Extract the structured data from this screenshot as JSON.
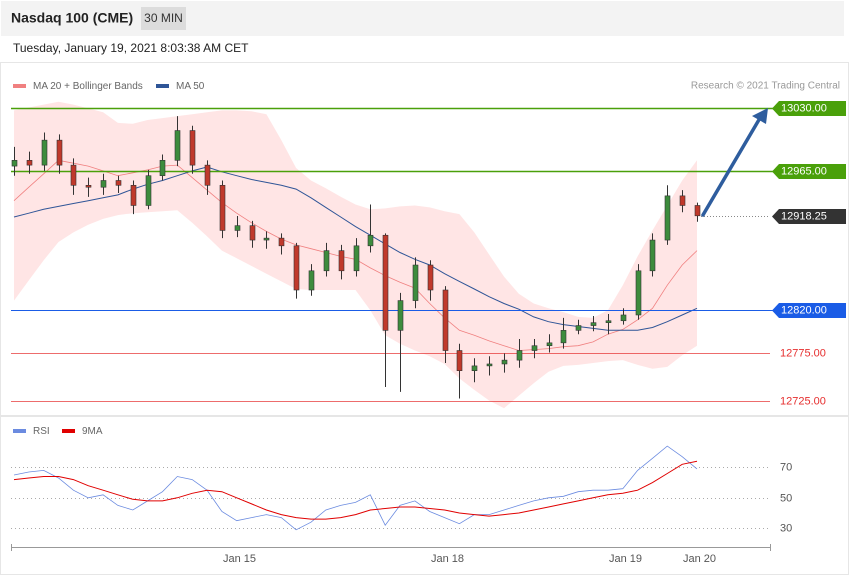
{
  "header": {
    "title": "Nasdaq 100 (CME)",
    "timeframe": "30 MIN",
    "timestamp": "Tuesday, January 19, 2021 8:03:38 AM CET"
  },
  "chart_data": [
    {
      "type": "candlestick",
      "credit": "Research © 2021 Trading Central",
      "categories": [
        null,
        null,
        null,
        null,
        null,
        null,
        null,
        null,
        null,
        null,
        null,
        null,
        null,
        null,
        null,
        "Jan 15",
        null,
        null,
        null,
        null,
        null,
        null,
        null,
        null,
        null,
        null,
        null,
        null,
        null,
        "Jan 18",
        null,
        null,
        null,
        null,
        null,
        null,
        null,
        null,
        null,
        null,
        null,
        "Jan 19",
        null,
        null,
        null,
        null,
        "Jan 20"
      ],
      "open": [
        12970,
        12976,
        12971,
        12997,
        12971,
        12950,
        12948,
        12955,
        12950,
        12929,
        12960,
        12976,
        13007,
        12971,
        12950,
        12903,
        12908,
        12893,
        12895,
        12887,
        12841,
        12861,
        12882,
        12861,
        12887,
        12898,
        12799,
        12830,
        12867,
        12841,
        12778,
        12757,
        12762,
        12764,
        12768,
        12778,
        12783,
        12786,
        12799,
        12804,
        12807,
        12809,
        12815,
        12861,
        12893,
        12939,
        12929
      ],
      "high": [
        12990,
        12985,
        13005,
        13003,
        12978,
        12958,
        12962,
        12960,
        12955,
        12966,
        12982,
        13022,
        13012,
        12976,
        12955,
        12918,
        12913,
        12902,
        12900,
        12890,
        12868,
        12890,
        12888,
        12895,
        12930,
        12900,
        12838,
        12875,
        12872,
        12845,
        12785,
        12770,
        12772,
        12775,
        12790,
        12790,
        12795,
        12812,
        12810,
        12814,
        12816,
        12822,
        12868,
        12900,
        12950,
        12945,
        12932
      ],
      "low": [
        12960,
        12962,
        12965,
        12962,
        12940,
        12938,
        12940,
        12942,
        12920,
        12925,
        12955,
        12970,
        12962,
        12940,
        12895,
        12896,
        12885,
        12884,
        12878,
        12832,
        12835,
        12855,
        12852,
        12855,
        12880,
        12740,
        12735,
        12822,
        12830,
        12765,
        12728,
        12745,
        12752,
        12755,
        12760,
        12770,
        12776,
        12780,
        12795,
        12798,
        12795,
        12805,
        12810,
        12855,
        12888,
        12922,
        12912
      ],
      "close": [
        12976,
        12971,
        12997,
        12971,
        12950,
        12948,
        12955,
        12950,
        12929,
        12960,
        12976,
        13007,
        12971,
        12950,
        12903,
        12908,
        12893,
        12895,
        12887,
        12841,
        12861,
        12882,
        12861,
        12887,
        12898,
        12799,
        12830,
        12867,
        12841,
        12778,
        12757,
        12762,
        12764,
        12768,
        12778,
        12783,
        12786,
        12799,
        12804,
        12807,
        12809,
        12815,
        12861,
        12893,
        12939,
        12929,
        12918.25
      ],
      "up_color": "#3d8c3d",
      "down_color": "#c0392b",
      "series": [
        {
          "name": "MA 20 + Bollinger Bands",
          "color": "#f08080",
          "band_color": "#ffdcdc",
          "values": [
            12934,
            12948,
            12962,
            12976,
            12973,
            12970,
            12965,
            12960,
            12963,
            12966,
            12970,
            12971,
            12958,
            12945,
            12932,
            12921,
            12911,
            12902,
            12894,
            12888,
            12884,
            12880,
            12876,
            12873,
            12864,
            12856,
            12849,
            12843,
            12827,
            12812,
            12799,
            12794,
            12788,
            12783,
            12778,
            12779,
            12780,
            12782,
            12783,
            12787,
            12795,
            12800,
            12810,
            12822,
            12846,
            12867,
            12882
          ],
          "upper": [
            13028,
            13031,
            13034,
            13037,
            13034,
            13030,
            13026,
            13015,
            13014,
            13018,
            13020,
            13022,
            13024,
            13026,
            13028,
            13028,
            13027,
            13024,
            12997,
            12968,
            12955,
            12947,
            12938,
            12930,
            12925,
            12926,
            12928,
            12929,
            12927,
            12923,
            12920,
            12901,
            12878,
            12855,
            12837,
            12827,
            12822,
            12818,
            12813,
            12812,
            12820,
            12846,
            12876,
            12903,
            12929,
            12955,
            12976
          ],
          "lower": [
            12830,
            12851,
            12872,
            12891,
            12901,
            12909,
            12915,
            12919,
            12921,
            12922,
            12923,
            12924,
            12911,
            12897,
            12882,
            12874,
            12866,
            12858,
            12850,
            12842,
            12841,
            12841,
            12841,
            12841,
            12820,
            12794,
            12785,
            12778,
            12772,
            12764,
            12749,
            12737,
            12726,
            12718,
            12731,
            12744,
            12756,
            12762,
            12763,
            12765,
            12767,
            12768,
            12763,
            12759,
            12761,
            12773,
            12783
          ]
        },
        {
          "name": "MA 50",
          "color": "#2f5597",
          "values": [
            12917,
            12921,
            12925,
            12928,
            12931,
            12934,
            12937,
            12940,
            12946,
            12951,
            12955,
            12960,
            12965,
            12969,
            12964,
            12960,
            12956,
            12953,
            12950,
            12946,
            12937,
            12927,
            12917,
            12907,
            12898,
            12889,
            12880,
            12873,
            12867,
            12858,
            12850,
            12842,
            12834,
            12827,
            12821,
            12813,
            12808,
            12805,
            12803,
            12801,
            12799,
            12799,
            12799,
            12802,
            12808,
            12815,
            12822
          ]
        }
      ],
      "levels": [
        {
          "value": 13030,
          "label": "13030.00",
          "color": "#4aa00a",
          "tag": true
        },
        {
          "value": 12965,
          "label": "12965.00",
          "color": "#4aa00a",
          "tag": true
        },
        {
          "value": 12820,
          "label": "12820.00",
          "color": "#1a5ce6",
          "tag": true
        },
        {
          "value": 12775,
          "label": "12775.00",
          "color": "#e62e2e",
          "tag": false
        },
        {
          "value": 12725,
          "label": "12725.00",
          "color": "#e62e2e",
          "tag": false
        }
      ],
      "ylim": [
        12714,
        13044
      ]
    },
    {
      "type": "line",
      "series": [
        {
          "name": "RSI",
          "color": "#6b8be0",
          "values": [
            65,
            67,
            68,
            63,
            55,
            50,
            52,
            45,
            42,
            48,
            54,
            64,
            62,
            55,
            41,
            35,
            37,
            39,
            37,
            29,
            34,
            42,
            45,
            47,
            52,
            32,
            45,
            48,
            41,
            37,
            33,
            39,
            39,
            42,
            45,
            48,
            50,
            51,
            54,
            55,
            55,
            56,
            68,
            76,
            84,
            77,
            69
          ]
        },
        {
          "name": "9MA",
          "color": "#e00000",
          "values": [
            62,
            63,
            64,
            64,
            62,
            58,
            55,
            52,
            49,
            48,
            48,
            50,
            53,
            55,
            54,
            50,
            46,
            42,
            39,
            37,
            36,
            36,
            37,
            39,
            42,
            43,
            44,
            44,
            43,
            42,
            40,
            39,
            38,
            39,
            40,
            42,
            44,
            46,
            48,
            50,
            52,
            53,
            55,
            60,
            66,
            72,
            74
          ]
        }
      ],
      "ylim": [
        19,
        88
      ],
      "yticks": [
        30,
        50,
        70
      ]
    }
  ]
}
